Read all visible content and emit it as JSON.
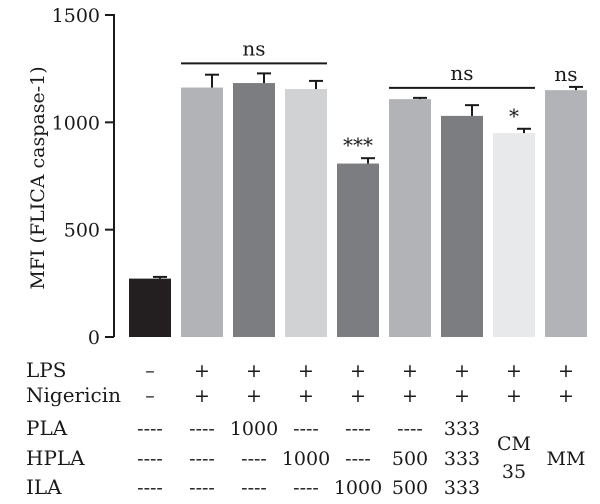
{
  "chart_data": {
    "type": "bar",
    "ylabel": "MFI (FLICA caspase-1)",
    "ylim": [
      0,
      1500
    ],
    "yticks": [
      0,
      500,
      1000,
      1500
    ],
    "grid": false,
    "bars": [
      {
        "value": 272,
        "error": 8,
        "color": "#231f20",
        "sig": ""
      },
      {
        "value": 1162,
        "error": 60,
        "color": "#b2b3b6",
        "sig": ""
      },
      {
        "value": 1183,
        "error": 45,
        "color": "#7c7d80",
        "sig": ""
      },
      {
        "value": 1155,
        "error": 38,
        "color": "#d1d2d4",
        "sig": ""
      },
      {
        "value": 808,
        "error": 25,
        "color": "#7c7d80",
        "sig": "***"
      },
      {
        "value": 1108,
        "error": 6,
        "color": "#b2b3b6",
        "sig": ""
      },
      {
        "value": 1030,
        "error": 50,
        "color": "#7c7d80",
        "sig": ""
      },
      {
        "value": 950,
        "error": 20,
        "color": "#e8e9ea",
        "sig": "*"
      },
      {
        "value": 1150,
        "error": 15,
        "color": "#b2b3b6",
        "sig": "ns"
      }
    ],
    "brackets": [
      {
        "from": 2,
        "to": 4,
        "label": "ns"
      },
      {
        "from": 6,
        "to": 8,
        "label": "ns"
      }
    ],
    "table": {
      "rows": [
        {
          "label": "LPS",
          "cells": [
            "–",
            "+",
            "+",
            "+",
            "+",
            "+",
            "+",
            "+",
            "+"
          ]
        },
        {
          "label": "Nigericin",
          "cells": [
            "–",
            "+",
            "+",
            "+",
            "+",
            "+",
            "+",
            "+",
            "+"
          ]
        },
        {
          "label": "PLA",
          "cells": [
            "----",
            "----",
            "1000",
            "----",
            "----",
            "----",
            "333"
          ]
        },
        {
          "label": "HPLA",
          "cells": [
            "----",
            "----",
            "----",
            "1000",
            "----",
            "500",
            "333"
          ]
        },
        {
          "label": "ILA",
          "cells": [
            "----",
            "----",
            "----",
            "----",
            "1000",
            "500",
            "333"
          ]
        }
      ],
      "merged": [
        {
          "col": 8,
          "lines": [
            "CM",
            "35"
          ]
        },
        {
          "col": 9,
          "lines": [
            "MM"
          ]
        }
      ]
    }
  }
}
